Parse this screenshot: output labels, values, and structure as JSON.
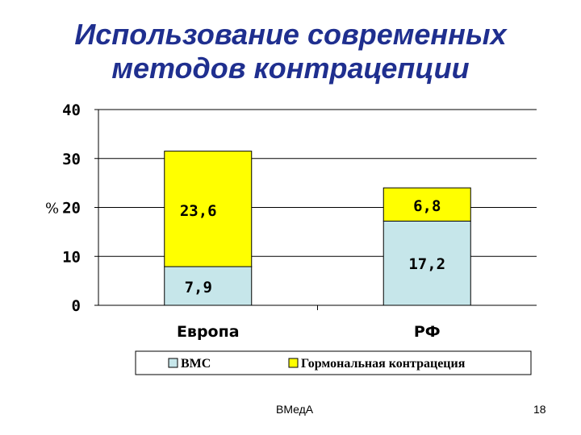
{
  "slide": {
    "title_line1": "Использование современных",
    "title_line2": "методов контрацепции",
    "footer_text": "ВМедА",
    "page_number": "18"
  },
  "chart_data": {
    "type": "bar",
    "stacked": true,
    "categories": [
      "Европа",
      "РФ"
    ],
    "series": [
      {
        "name": "ВМС",
        "values": [
          7.9,
          17.2
        ],
        "labels": [
          "7,9",
          "17,2"
        ],
        "color": "#c6e6ea"
      },
      {
        "name": "Гормональная контрацеция",
        "values": [
          23.6,
          6.8
        ],
        "labels": [
          "23,6",
          "6,8"
        ],
        "color": "#ffff00"
      }
    ],
    "ylabel": "%",
    "ylim": [
      0,
      40
    ],
    "yticks": [
      0,
      10,
      20,
      30,
      40
    ],
    "ytick_labels": [
      "0",
      "10",
      "20",
      "30",
      "40"
    ],
    "grid": true,
    "legend": "bottom"
  }
}
